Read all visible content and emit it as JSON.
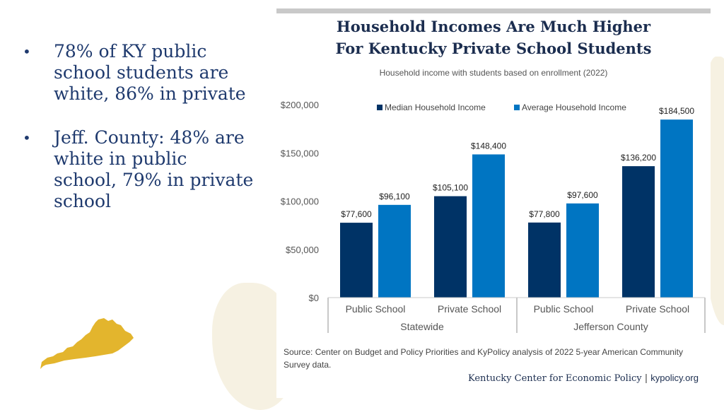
{
  "bullets": [
    "78% of KY public school students are white, 86% in private",
    "Jeff. County: 48% are white in public school, 79% in private school"
  ],
  "colors": {
    "median": "#003366",
    "average": "#0075c2",
    "text_blue": "#1f3a6e",
    "kentucky_map": "#e3b52d"
  },
  "chart_data": {
    "type": "bar",
    "title_line1": "Household Incomes Are Much Higher",
    "title_line2": "For Kentucky Private School Students",
    "subtitle": "Household income with students based on enrollment (2022)",
    "categories": [
      "Public School",
      "Private School",
      "Public School",
      "Private School"
    ],
    "groups": [
      {
        "label": "Statewide",
        "categories": [
          "Public School",
          "Private School"
        ]
      },
      {
        "label": "Jefferson County",
        "categories": [
          "Public School",
          "Private School"
        ]
      }
    ],
    "series": [
      {
        "name": "Median Household Income",
        "values": [
          77600,
          105100,
          77800,
          136200
        ],
        "labels": [
          "$77,600",
          "$105,100",
          "$77,800",
          "$136,200"
        ]
      },
      {
        "name": "Average Household Income",
        "values": [
          96100,
          148400,
          97600,
          184500
        ],
        "labels": [
          "$96,100",
          "$148,400",
          "$97,600",
          "$184,500"
        ]
      }
    ],
    "ylim": [
      0,
      200000
    ],
    "yticks": [
      0,
      50000,
      100000,
      150000,
      200000
    ],
    "ytick_labels": [
      "$0",
      "$50,000",
      "$100,000",
      "$150,000",
      "$200,000"
    ],
    "legend_position": "top",
    "grid": false
  },
  "source": "Source: Center on Budget and Policy Priorities and KyPolicy analysis of 2022 5-year American Community Survey data.",
  "footer": {
    "brand": "Kentucky Center for Economic Policy",
    "separator": "|",
    "site": "kypolicy.org"
  }
}
